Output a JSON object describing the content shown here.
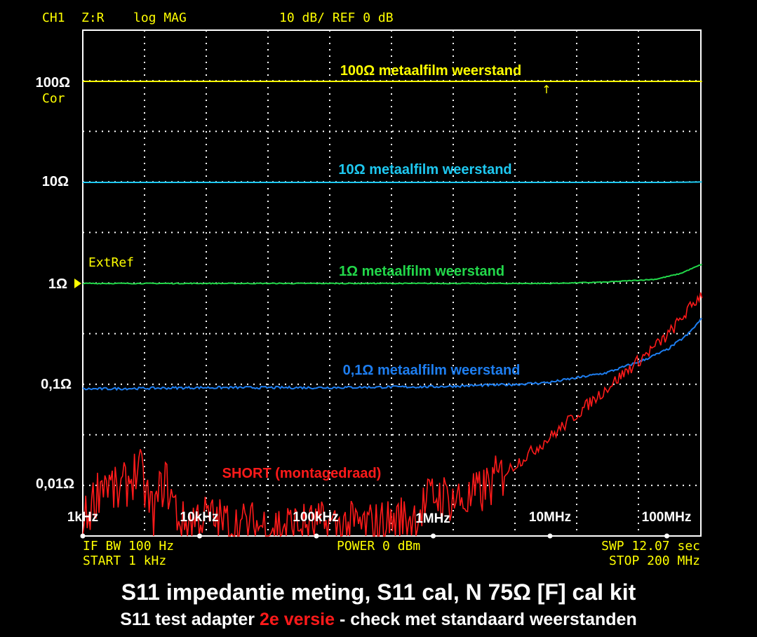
{
  "header": {
    "channel": "CH1",
    "param": "Z:R",
    "format": "log MAG",
    "scale": "10 dB/ REF 0 dB"
  },
  "footer": {
    "ifbw": "IF BW 100 Hz",
    "start": "START  1 kHz",
    "power": "POWER  0 dBm",
    "sweep": "SWP  12.07 sec",
    "stop": "STOP  200 MHz"
  },
  "annotations": {
    "cor": "Cor",
    "extref": "ExtRef",
    "marker": "↑"
  },
  "caption": {
    "line1": "S11 impedantie meting, S11 cal, N 75Ω [F] cal kit",
    "line2_pre": "S11 test adapter ",
    "line2_highlight": "2e versie",
    "line2_post": " - check met standaard weerstanden"
  },
  "colors": {
    "background": "#000000",
    "frame": "#ffffff",
    "grid": "#ffffff",
    "instrument_text": "#ffff00",
    "r100": "#ffff00",
    "r10": "#1ec8f0",
    "r1": "#22d84a",
    "r01": "#1e7ef0",
    "short": "#ff1a1a",
    "caption_highlight": "#ff1a1a"
  },
  "chart_data": {
    "type": "line",
    "x_scale": "log",
    "y_scale": "log",
    "xlim": [
      "1 kHz",
      "200 MHz"
    ],
    "ylim": [
      "0,01Ω",
      "100Ω"
    ],
    "y_ticks": [
      "100Ω",
      "10Ω",
      "1Ω",
      "0,1Ω",
      "0,01Ω"
    ],
    "x_ticks": [
      "1kHz",
      "10kHz",
      "100kHz",
      "1MHz",
      "10MHz",
      "100MHz"
    ],
    "grid": true,
    "series": [
      {
        "name": "100Ω metaalfilm weerstand",
        "color_key": "r100",
        "points": [
          [
            "1 kHz",
            100
          ],
          [
            "200 MHz",
            100
          ]
        ]
      },
      {
        "name": "10Ω metaalfilm weerstand",
        "color_key": "r10",
        "points": [
          [
            "1 kHz",
            10
          ],
          [
            "100 MHz",
            10
          ],
          [
            "200 MHz",
            10.1
          ]
        ]
      },
      {
        "name": "1Ω metaalfilm weerstand",
        "color_key": "r1",
        "points": [
          [
            "1 kHz",
            1.0
          ],
          [
            "1 MHz",
            1.0
          ],
          [
            "10 MHz",
            1.0
          ],
          [
            "30 MHz",
            1.03
          ],
          [
            "80 MHz",
            1.1
          ],
          [
            "130 MHz",
            1.25
          ],
          [
            "200 MHz",
            1.55
          ]
        ]
      },
      {
        "name": "0,1Ω metaalfilm weerstand",
        "color_key": "r01",
        "points": [
          [
            "1 kHz",
            0.09
          ],
          [
            "10 kHz",
            0.093
          ],
          [
            "100 kHz",
            0.093
          ],
          [
            "1 MHz",
            0.095
          ],
          [
            "5 MHz",
            0.1
          ],
          [
            "10 MHz",
            0.105
          ],
          [
            "30 MHz",
            0.13
          ],
          [
            "60 MHz",
            0.17
          ],
          [
            "100 MHz",
            0.22
          ],
          [
            "150 MHz",
            0.31
          ],
          [
            "200 MHz",
            0.45
          ]
        ]
      },
      {
        "name": "SHORT (montagedraad)",
        "color_key": "short",
        "points": [
          [
            "1 kHz",
            0.004
          ],
          [
            "1.5 kHz",
            0.012
          ],
          [
            "2 kHz",
            0.008
          ],
          [
            "3 kHz",
            0.015
          ],
          [
            "4 kHz",
            0.005
          ],
          [
            "5 kHz",
            0.012
          ],
          [
            "7 kHz",
            0.004
          ],
          [
            "10 kHz",
            0.005
          ],
          [
            "20 kHz",
            0.004
          ],
          [
            "50 kHz",
            0.004
          ],
          [
            "100 kHz",
            0.004
          ],
          [
            "300 kHz",
            0.004
          ],
          [
            "700 kHz",
            0.005
          ],
          [
            "1 MHz",
            0.008
          ],
          [
            "2 MHz",
            0.007
          ],
          [
            "3 MHz",
            0.01
          ],
          [
            "5 MHz",
            0.016
          ],
          [
            "10 MHz",
            0.03
          ],
          [
            "20 MHz",
            0.06
          ],
          [
            "50 MHz",
            0.15
          ],
          [
            "100 MHz",
            0.3
          ],
          [
            "200 MHz",
            0.8
          ]
        ]
      }
    ]
  }
}
